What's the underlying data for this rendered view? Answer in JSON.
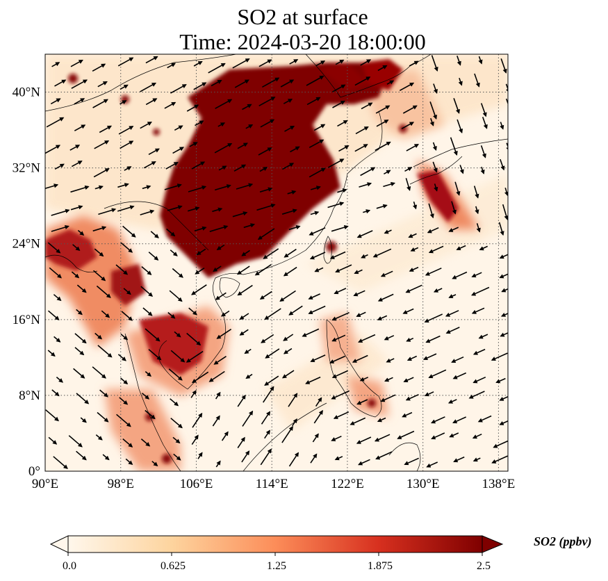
{
  "title": {
    "line1": "SO2 at surface",
    "line2": "Time: 2024-03-20 18:00:00"
  },
  "map": {
    "lon_range": [
      90,
      139
    ],
    "lat_range": [
      0,
      44
    ],
    "lon_ticks": [
      {
        "value": 90,
        "label": "90°E"
      },
      {
        "value": 98,
        "label": "98°E"
      },
      {
        "value": 106,
        "label": "106°E"
      },
      {
        "value": 114,
        "label": "114°E"
      },
      {
        "value": 122,
        "label": "122°E"
      },
      {
        "value": 130,
        "label": "130°E"
      },
      {
        "value": 138,
        "label": "138°E"
      }
    ],
    "lat_ticks": [
      {
        "value": 0,
        "label": "0°"
      },
      {
        "value": 8,
        "label": "8°N"
      },
      {
        "value": 16,
        "label": "16°N"
      },
      {
        "value": 24,
        "label": "24°N"
      },
      {
        "value": 32,
        "label": "32°N"
      },
      {
        "value": 40,
        "label": "40°N"
      }
    ],
    "gridlines": "dotted",
    "overlay": "wind vectors",
    "colormap": "OrRd"
  },
  "colorbar": {
    "label": "SO2 (ppbv)",
    "ticks": [
      "0.0",
      "0.625",
      "1.25",
      "1.875",
      "2.5"
    ],
    "range": [
      0,
      2.5
    ],
    "extend": "both",
    "colors": [
      "#fff7ec",
      "#fdd49e",
      "#fc8d59",
      "#d7301f",
      "#7f0000"
    ]
  }
}
